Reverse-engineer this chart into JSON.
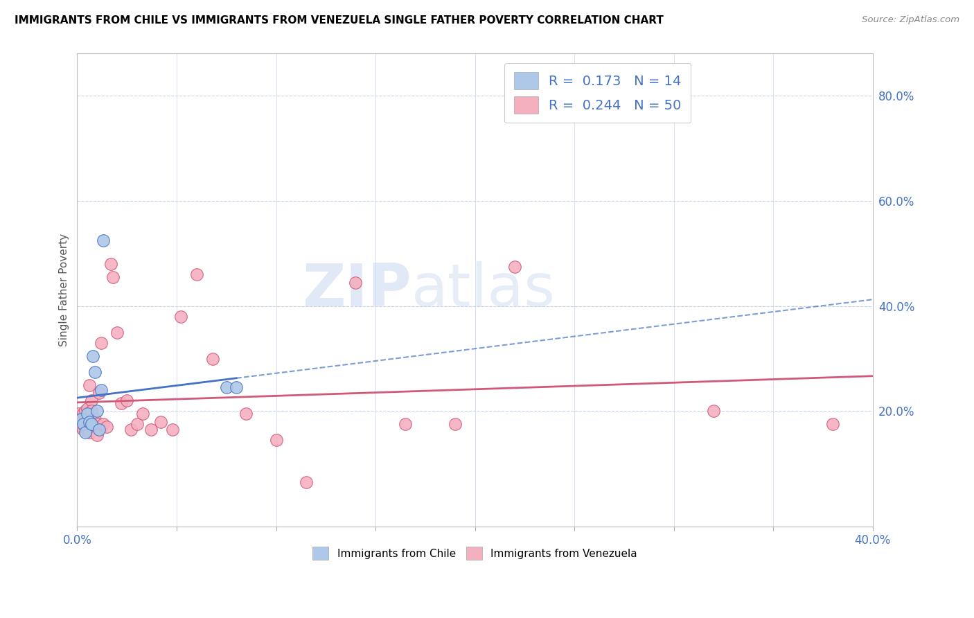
{
  "title": "IMMIGRANTS FROM CHILE VS IMMIGRANTS FROM VENEZUELA SINGLE FATHER POVERTY CORRELATION CHART",
  "source": "Source: ZipAtlas.com",
  "ylabel": "Single Father Poverty",
  "ylabel_right_ticks": [
    "80.0%",
    "60.0%",
    "40.0%",
    "20.0%"
  ],
  "ylabel_right_vals": [
    0.8,
    0.6,
    0.4,
    0.2
  ],
  "xlim": [
    0.0,
    0.4
  ],
  "ylim": [
    -0.02,
    0.88
  ],
  "legend_R_chile": "0.173",
  "legend_N_chile": "14",
  "legend_R_venezuela": "0.244",
  "legend_N_venezuela": "50",
  "chile_color": "#adc8e8",
  "venezuela_color": "#f5b0c0",
  "chile_line_color": "#4472c4",
  "venezuela_line_color": "#d05878",
  "watermark_zip": "ZIP",
  "watermark_atlas": "atlas",
  "chile_points_x": [
    0.002,
    0.003,
    0.004,
    0.005,
    0.006,
    0.007,
    0.008,
    0.009,
    0.01,
    0.011,
    0.012,
    0.013,
    0.075,
    0.08
  ],
  "chile_points_y": [
    0.185,
    0.175,
    0.16,
    0.195,
    0.18,
    0.175,
    0.305,
    0.275,
    0.2,
    0.165,
    0.24,
    0.525,
    0.245,
    0.245
  ],
  "venezuela_points_x": [
    0.001,
    0.001,
    0.002,
    0.002,
    0.003,
    0.003,
    0.003,
    0.004,
    0.004,
    0.004,
    0.005,
    0.005,
    0.005,
    0.006,
    0.006,
    0.006,
    0.007,
    0.007,
    0.008,
    0.008,
    0.009,
    0.01,
    0.01,
    0.011,
    0.012,
    0.013,
    0.015,
    0.017,
    0.018,
    0.02,
    0.022,
    0.025,
    0.027,
    0.03,
    0.033,
    0.037,
    0.042,
    0.048,
    0.052,
    0.06,
    0.068,
    0.085,
    0.1,
    0.115,
    0.14,
    0.165,
    0.19,
    0.22,
    0.32,
    0.38
  ],
  "venezuela_points_y": [
    0.195,
    0.175,
    0.185,
    0.17,
    0.195,
    0.185,
    0.165,
    0.2,
    0.185,
    0.17,
    0.205,
    0.185,
    0.165,
    0.175,
    0.16,
    0.25,
    0.22,
    0.2,
    0.185,
    0.175,
    0.185,
    0.175,
    0.155,
    0.235,
    0.33,
    0.175,
    0.17,
    0.48,
    0.455,
    0.35,
    0.215,
    0.22,
    0.165,
    0.175,
    0.195,
    0.165,
    0.18,
    0.165,
    0.38,
    0.46,
    0.3,
    0.195,
    0.145,
    0.065,
    0.445,
    0.175,
    0.175,
    0.475,
    0.2,
    0.175
  ]
}
